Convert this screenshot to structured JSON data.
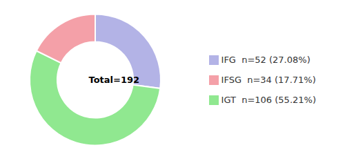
{
  "chart_data": {
    "type": "pie",
    "categories": [
      "IFG  n=52 (27.08%)",
      "IGT  n=106 (55.21%)",
      "IFSG  n=34 (17.71%)"
    ],
    "values": [
      52,
      106,
      34
    ],
    "colors": [
      "#b3b3e6",
      "#90e890",
      "#f4a0a8"
    ],
    "annotations": [
      "Total=192"
    ],
    "legend": "right"
  }
}
